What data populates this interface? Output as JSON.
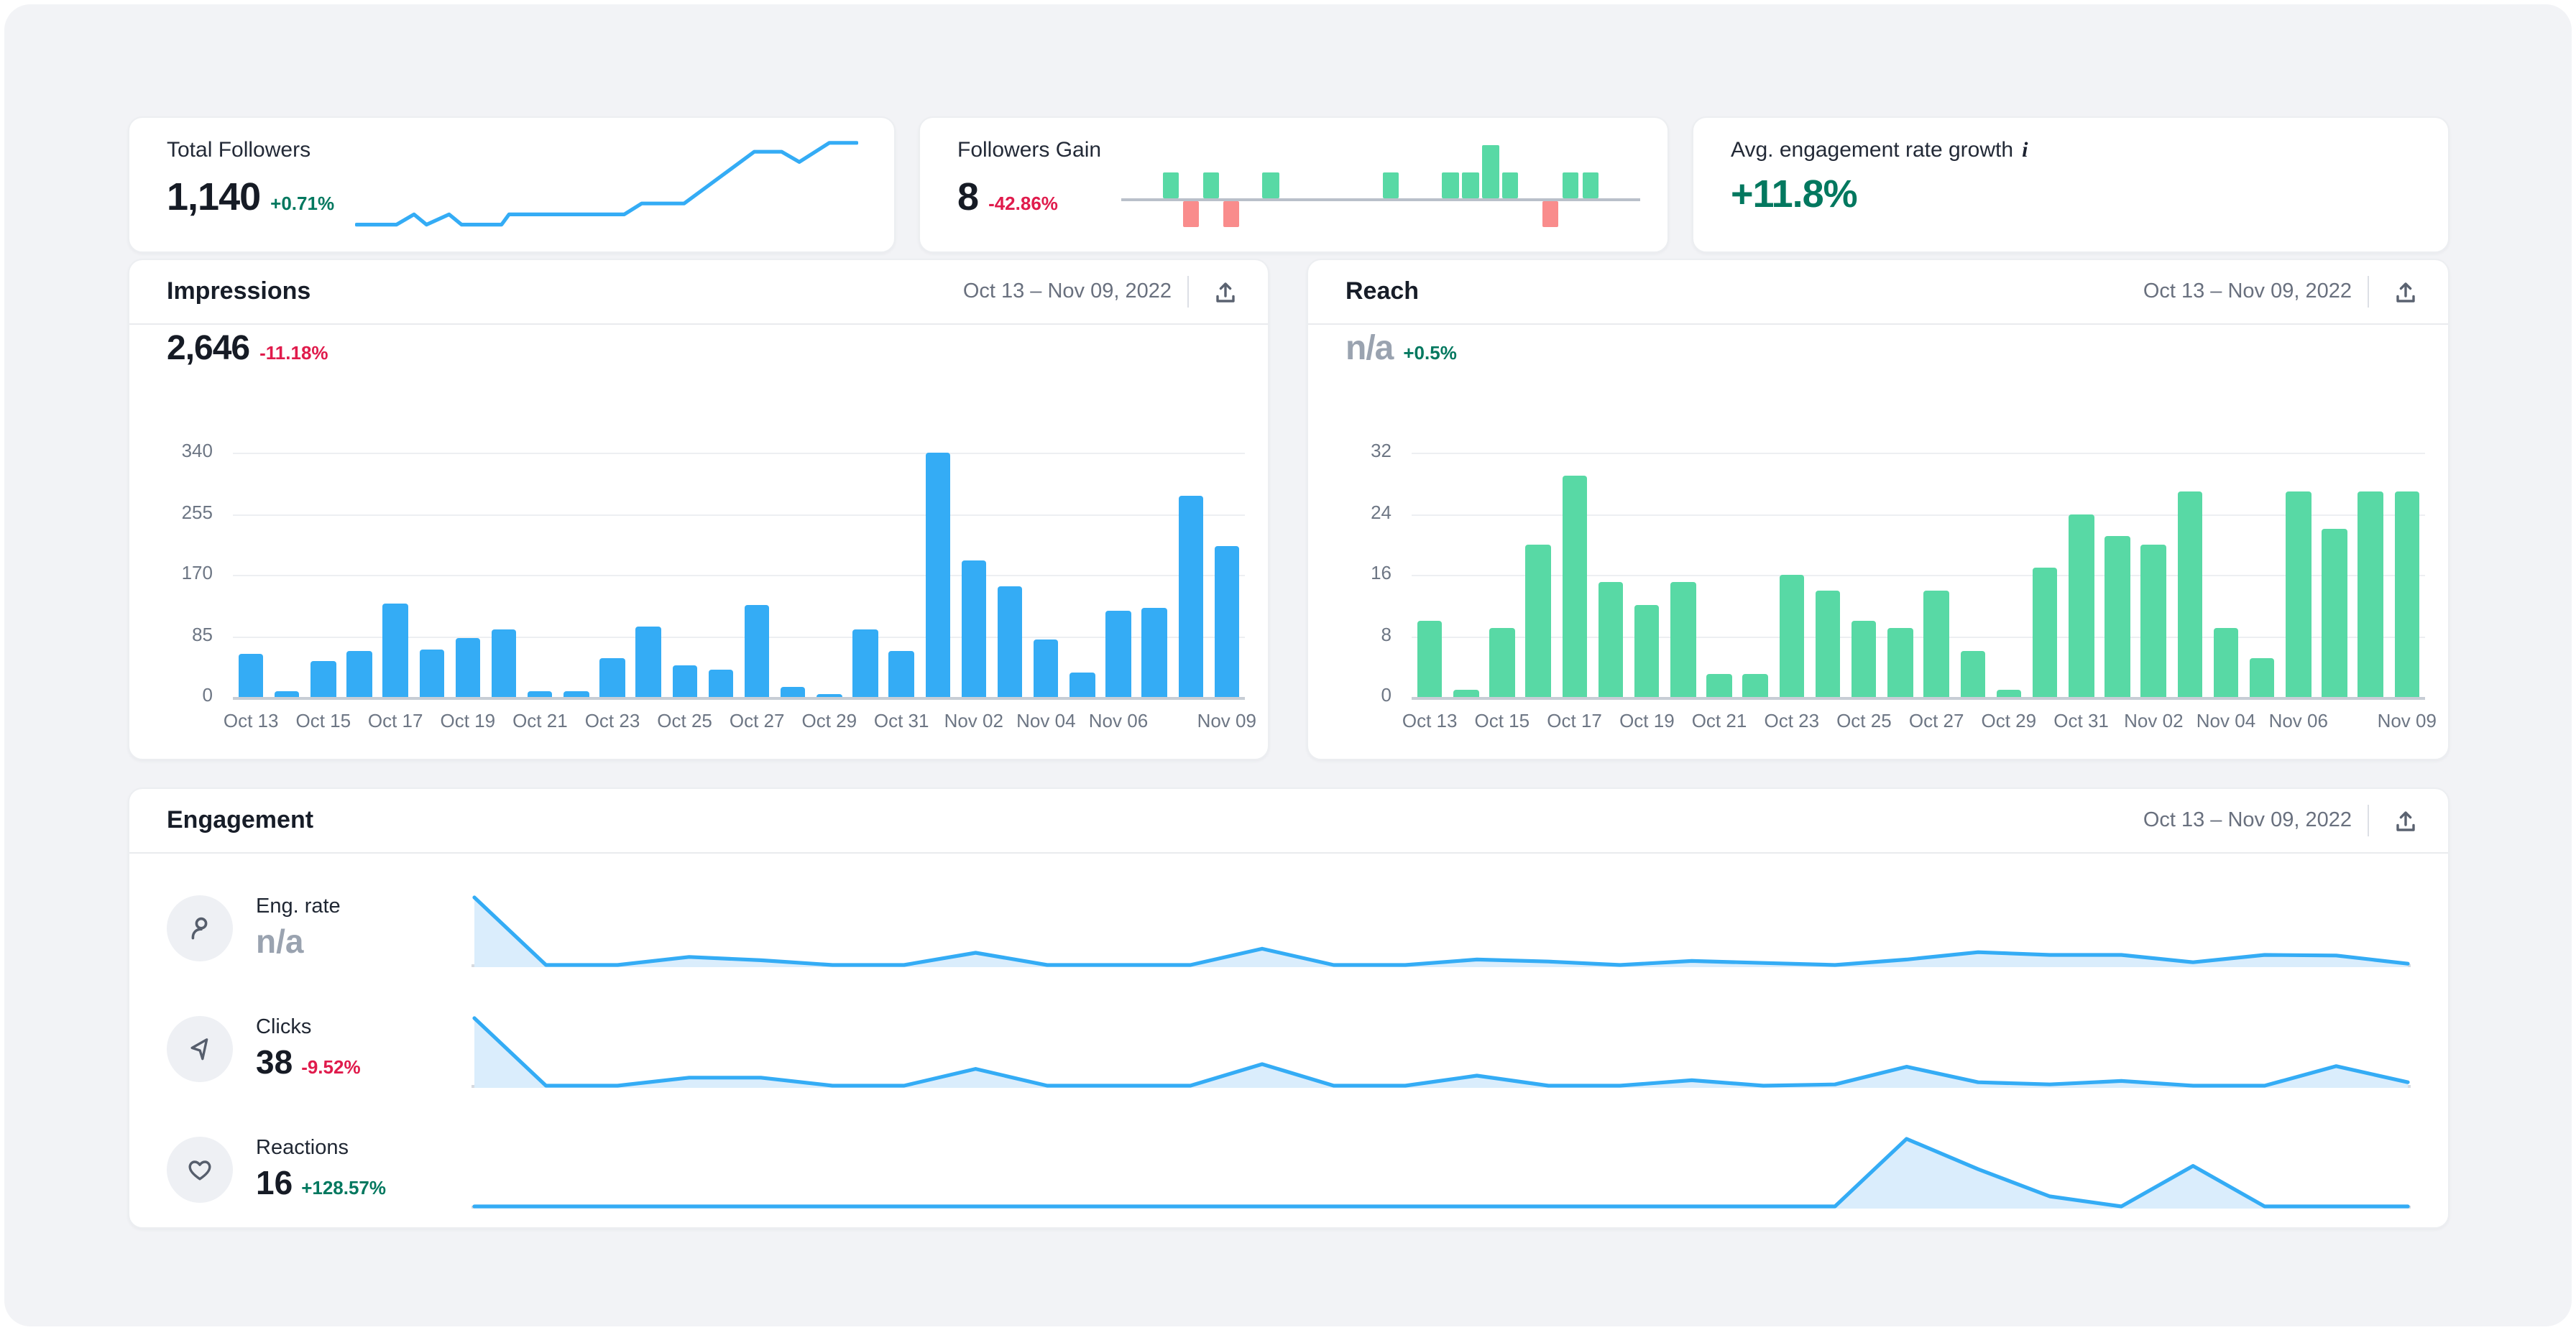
{
  "cards": {
    "total_followers": {
      "label": "Total Followers",
      "value": "1,140",
      "delta": "+0.71%"
    },
    "followers_gain": {
      "label": "Followers Gain",
      "value": "8",
      "delta": "-42.86%"
    },
    "avg_engagement": {
      "label": "Avg. engagement rate growth",
      "info": "i",
      "value": "+11.8%"
    }
  },
  "impressions": {
    "title": "Impressions",
    "date_range": "Oct 13 – Nov 09, 2022",
    "value": "2,646",
    "delta": "-11.18%"
  },
  "reach": {
    "title": "Reach",
    "date_range": "Oct 13 – Nov 09, 2022",
    "value": "n/a",
    "delta": "+0.5%"
  },
  "engagement": {
    "title": "Engagement",
    "date_range": "Oct 13 – Nov 09, 2022",
    "rows": [
      {
        "label": "Eng. rate",
        "value": "n/a",
        "delta": "",
        "icon": "person-icon"
      },
      {
        "label": "Clicks",
        "value": "38",
        "delta": "-9.52%",
        "icon": "cursor-icon"
      },
      {
        "label": "Reactions",
        "value": "16",
        "delta": "+128.57%",
        "icon": "heart-icon"
      }
    ]
  },
  "colors": {
    "accent_blue": "#34acf5",
    "area_fill": "#daedfc",
    "positive_green_bar": "#58d9a5",
    "negative_red_bar": "#f98c8c",
    "text_green": "#03785f",
    "text_red": "#e01b4c",
    "na_gray": "#9aa3b0"
  },
  "chart_data": [
    {
      "id": "total-followers-trend",
      "type": "line",
      "title": "Total Followers trend (sparkline)",
      "x_pct": [
        0,
        8,
        11.5,
        14,
        18.5,
        21,
        29,
        30.5,
        53.5,
        57,
        65.5,
        79.5,
        85,
        88.5,
        94.5,
        100
      ],
      "y_pct": [
        2,
        2,
        14,
        2,
        14,
        2,
        2,
        14,
        14,
        27,
        27,
        88,
        88,
        76,
        98.5,
        98.5
      ]
    },
    {
      "id": "followers-gain-daily",
      "type": "bar",
      "title": "Followers Gain daily (+/-)",
      "values": [
        0,
        0,
        1,
        -1,
        1,
        -1,
        0,
        1,
        0,
        0,
        0,
        0,
        0,
        1,
        0,
        0,
        1,
        1,
        2,
        1,
        0,
        -1,
        1,
        1,
        0,
        0
      ]
    },
    {
      "id": "impressions-daily",
      "type": "bar",
      "title": "Impressions",
      "categories": [
        "Oct 13",
        "Oct 14",
        "Oct 15",
        "Oct 16",
        "Oct 17",
        "Oct 18",
        "Oct 19",
        "Oct 20",
        "Oct 21",
        "Oct 22",
        "Oct 23",
        "Oct 24",
        "Oct 25",
        "Oct 26",
        "Oct 27",
        "Oct 28",
        "Oct 29",
        "Oct 30",
        "Oct 31",
        "Nov 01",
        "Nov 02",
        "Nov 03",
        "Nov 04",
        "Nov 05",
        "Nov 06",
        "Nov 07",
        "Nov 08",
        "Nov 09"
      ],
      "values": [
        60,
        8,
        50,
        65,
        130,
        67,
        82,
        95,
        8,
        8,
        55,
        98,
        45,
        38,
        128,
        15,
        5,
        95,
        64,
        340,
        190,
        155,
        80,
        34,
        120,
        125,
        280,
        210
      ],
      "ylim": [
        0,
        340
      ],
      "yticks": [
        0,
        85,
        170,
        255,
        340
      ],
      "xtick_labels": [
        "Oct 13",
        "Oct 15",
        "Oct 17",
        "Oct 19",
        "Oct 21",
        "Oct 23",
        "Oct 25",
        "Oct 27",
        "Oct 29",
        "Oct 31",
        "Nov 02",
        "Nov 04",
        "Nov 06",
        "Nov 09"
      ],
      "xtick_indices": [
        0,
        2,
        4,
        6,
        8,
        10,
        12,
        14,
        16,
        18,
        20,
        22,
        24,
        27
      ],
      "grid": true,
      "legend": "none"
    },
    {
      "id": "reach-daily",
      "type": "bar",
      "title": "Reach",
      "categories": [
        "Oct 13",
        "Oct 14",
        "Oct 15",
        "Oct 16",
        "Oct 17",
        "Oct 18",
        "Oct 19",
        "Oct 20",
        "Oct 21",
        "Oct 22",
        "Oct 23",
        "Oct 24",
        "Oct 25",
        "Oct 26",
        "Oct 27",
        "Oct 28",
        "Oct 29",
        "Oct 30",
        "Oct 31",
        "Nov 01",
        "Nov 02",
        "Nov 03",
        "Nov 04",
        "Nov 05",
        "Nov 06",
        "Nov 07",
        "Nov 08",
        "Nov 09"
      ],
      "values": [
        10,
        1,
        9,
        20,
        29,
        15,
        12,
        15,
        3,
        3,
        16,
        14,
        10,
        9,
        14,
        6,
        1,
        17,
        24,
        21,
        20,
        27,
        9,
        5,
        27,
        22,
        27,
        27
      ],
      "ylim": [
        0,
        32
      ],
      "yticks": [
        0,
        8,
        16,
        24,
        32
      ],
      "xtick_labels": [
        "Oct 13",
        "Oct 15",
        "Oct 17",
        "Oct 19",
        "Oct 21",
        "Oct 23",
        "Oct 25",
        "Oct 27",
        "Oct 29",
        "Oct 31",
        "Nov 02",
        "Nov 04",
        "Nov 06",
        "Nov 09"
      ],
      "xtick_indices": [
        0,
        2,
        4,
        6,
        8,
        10,
        12,
        14,
        16,
        18,
        20,
        22,
        24,
        27
      ],
      "grid": true,
      "legend": "none"
    },
    {
      "id": "engagement-trends",
      "type": "area",
      "title": "Engagement trends (relative scale 0-10)",
      "categories": [
        "Oct 13",
        "Oct 14",
        "Oct 15",
        "Oct 16",
        "Oct 17",
        "Oct 18",
        "Oct 19",
        "Oct 20",
        "Oct 21",
        "Oct 22",
        "Oct 23",
        "Oct 24",
        "Oct 25",
        "Oct 26",
        "Oct 27",
        "Oct 28",
        "Oct 29",
        "Oct 30",
        "Oct 31",
        "Nov 01",
        "Nov 02",
        "Nov 03",
        "Nov 04",
        "Nov 05",
        "Nov 06",
        "Nov 07",
        "Nov 08",
        "Nov 09"
      ],
      "ymax": 10,
      "series": [
        {
          "name": "Eng. rate",
          "values": [
            10,
            0,
            0,
            1.2,
            0.7,
            0,
            0,
            1.8,
            0,
            0,
            0,
            2.4,
            0,
            0,
            0.8,
            0.5,
            0,
            0.6,
            0.3,
            0,
            0.8,
            1.9,
            1.5,
            1.5,
            0.4,
            1.5,
            1.4,
            0.2
          ]
        },
        {
          "name": "Clicks",
          "values": [
            10,
            0,
            0,
            1.2,
            1.2,
            0,
            0,
            2.5,
            0,
            0,
            0,
            3.2,
            0,
            0,
            1.5,
            0,
            0,
            0.8,
            0,
            0.2,
            2.8,
            0.5,
            0.2,
            0.7,
            0,
            0,
            2.9,
            0.5
          ]
        },
        {
          "name": "Reactions",
          "values": [
            0,
            0,
            0,
            0,
            0,
            0,
            0,
            0,
            0,
            0,
            0,
            0,
            0,
            0,
            0,
            0,
            0,
            0,
            0,
            0,
            10,
            5.5,
            1.5,
            0,
            6,
            0,
            0,
            0
          ]
        }
      ]
    }
  ]
}
